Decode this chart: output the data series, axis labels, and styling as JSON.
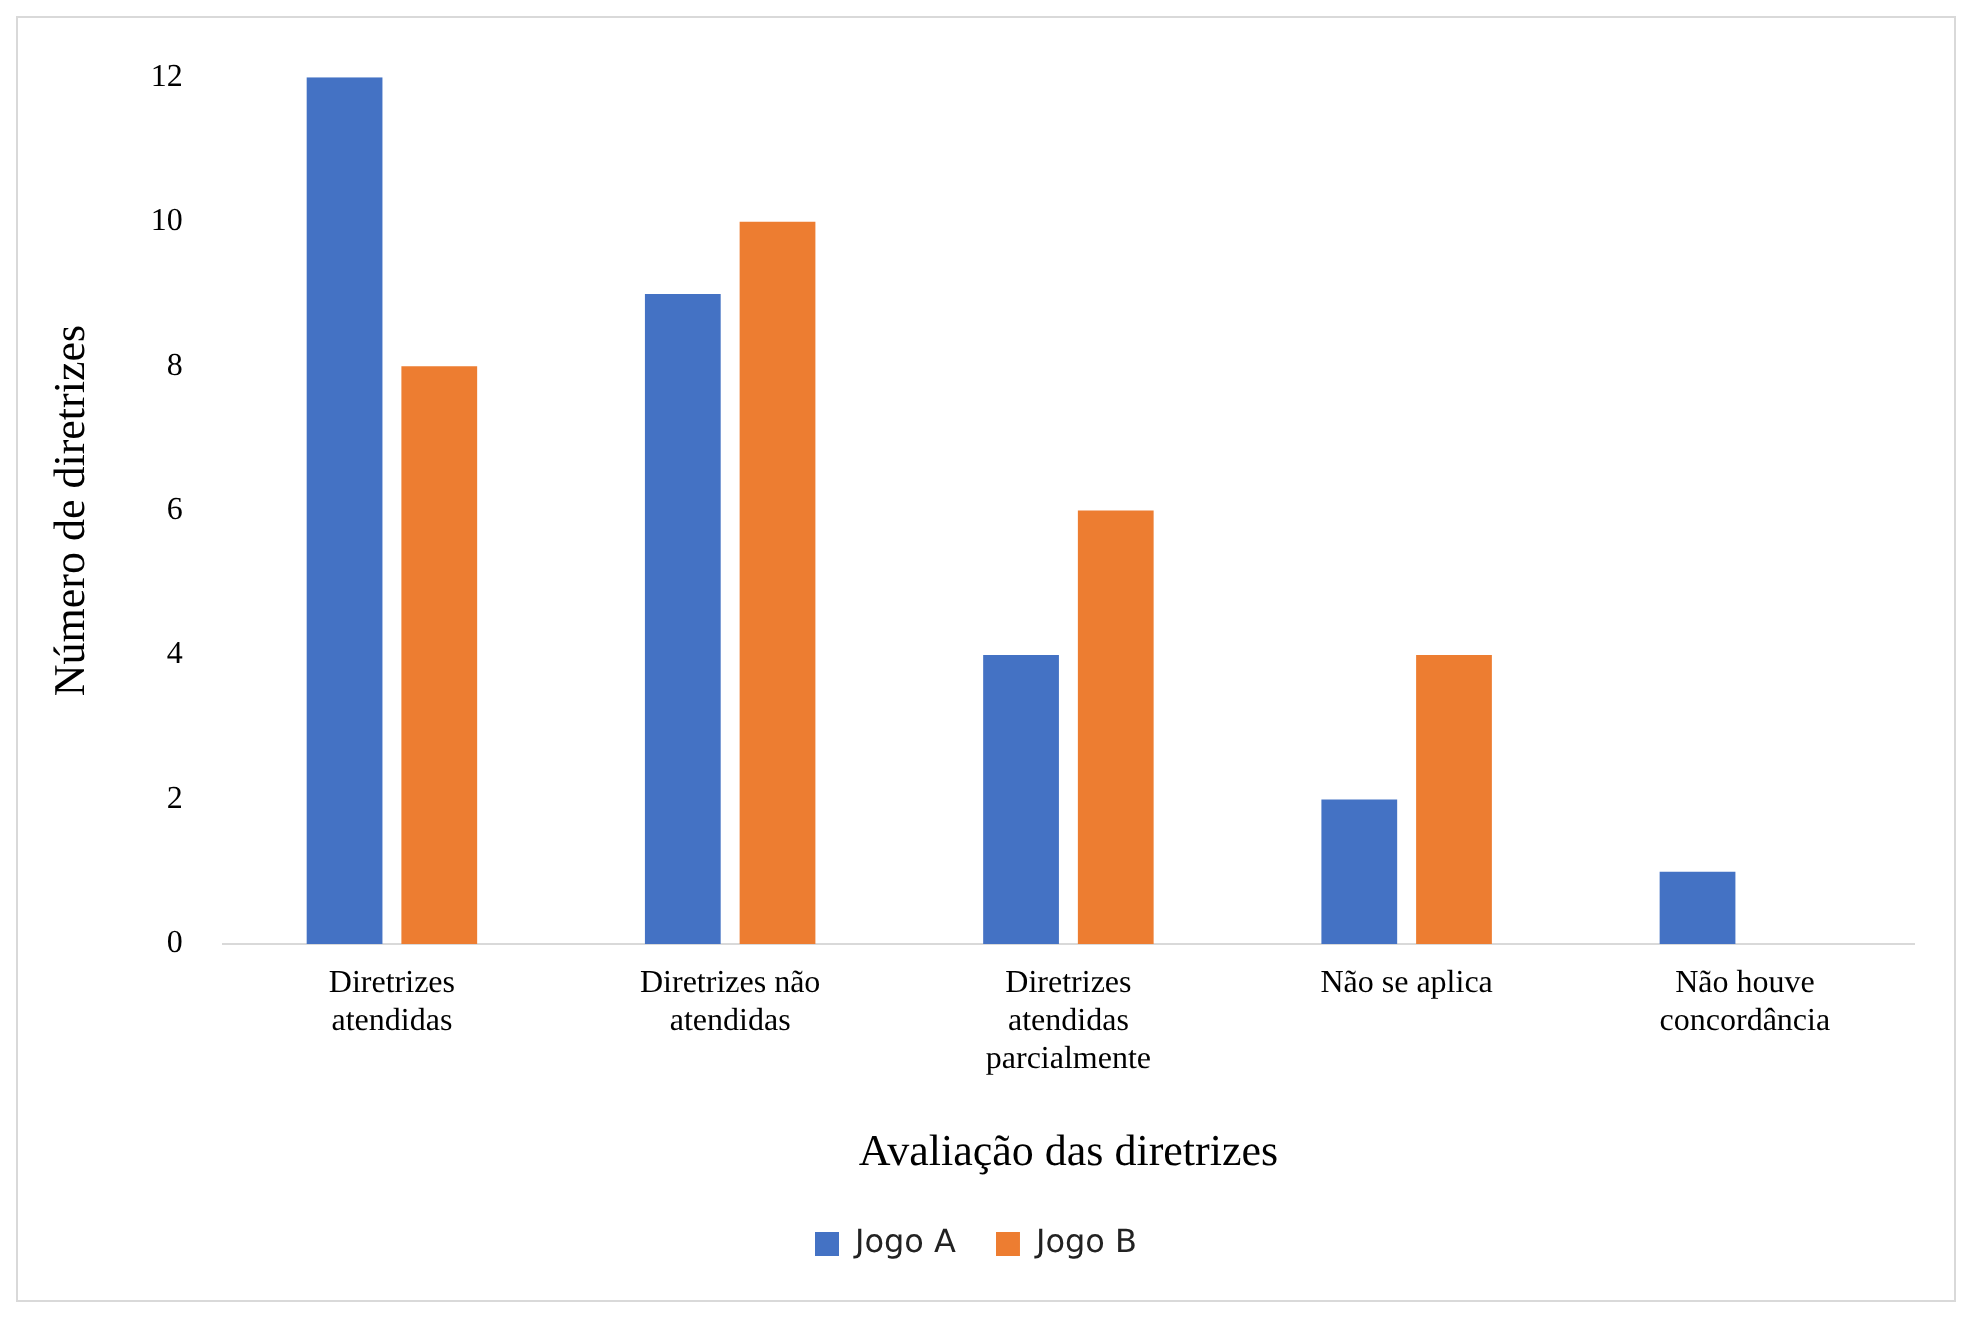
{
  "chart_data": {
    "type": "bar",
    "xlabel": "Avaliação das diretrizes",
    "ylabel": "Número de diretrizes",
    "categories": [
      "Diretrizes atendidas",
      "Diretrizes não atendidas",
      "Diretrizes atendidas parcialmente",
      "Não se aplica",
      "Não houve concordância"
    ],
    "series": [
      {
        "name": "Jogo A",
        "color": "#4472c4",
        "values": [
          12,
          9,
          4,
          2,
          1
        ]
      },
      {
        "name": "Jogo B",
        "color": "#ed7d31",
        "values": [
          8,
          10,
          6,
          4,
          0
        ]
      }
    ],
    "ylim": [
      0,
      12
    ],
    "yticks": [
      0,
      2,
      4,
      6,
      8,
      10,
      12
    ],
    "grid": false,
    "legend": "bottom"
  }
}
